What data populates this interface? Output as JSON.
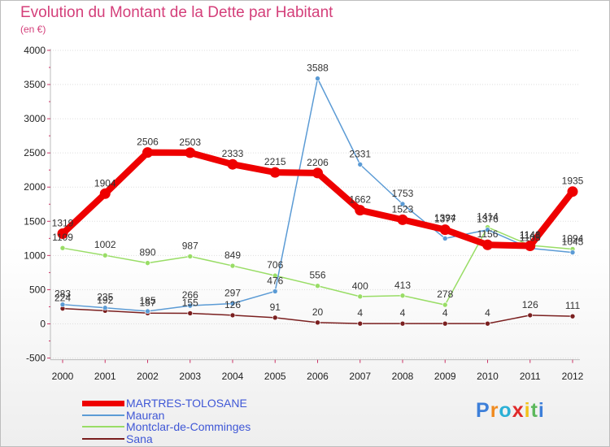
{
  "chart_data": {
    "type": "line",
    "title": "Evolution du Montant de la Dette par Habitant",
    "unit_label": "(en €)",
    "xlabel": "",
    "ylabel": "",
    "categories": [
      "2000",
      "2001",
      "2002",
      "2003",
      "2004",
      "2005",
      "2006",
      "2007",
      "2008",
      "2009",
      "2010",
      "2011",
      "2012"
    ],
    "ylim": [
      -500,
      4000
    ],
    "yticks": [
      -500,
      0,
      500,
      1000,
      1500,
      2000,
      2500,
      3000,
      3500,
      4000
    ],
    "series": [
      {
        "name": "MARTRES-TOLOSANE",
        "color": "#ee0000",
        "values": [
          1319,
          1904,
          2506,
          2503,
          2333,
          2215,
          2206,
          1662,
          1523,
          1377,
          1156,
          1141,
          1935
        ],
        "labels": [
          "1319",
          "1904",
          "2506",
          "2503",
          "2333",
          "2215",
          "2206",
          "1662",
          "1523",
          "1377",
          "1156",
          "1141",
          "1935"
        ]
      },
      {
        "name": "Mauran",
        "color": "#5b9bd5",
        "values": [
          283,
          235,
          185,
          266,
          297,
          476,
          3588,
          2331,
          1753,
          1249,
          1376,
          1105,
          1045
        ],
        "labels": [
          "283",
          "235",
          "185",
          "266",
          "297",
          "476",
          "3588",
          "2331",
          "1753",
          "",
          "1376",
          "1105",
          "1045"
        ]
      },
      {
        "name": "Montclar-de-Comminges",
        "color": "#99dd66",
        "values": [
          1109,
          1002,
          890,
          987,
          849,
          706,
          556,
          400,
          413,
          278,
          1414,
          1148,
          1094
        ],
        "labels": [
          "1109",
          "1002",
          "890",
          "987",
          "849",
          "706",
          "556",
          "400",
          "413",
          "278",
          "1414",
          "1148",
          "1094"
        ]
      },
      {
        "name": "Sana",
        "color": "#7a1f1f",
        "values": [
          224,
          192,
          157,
          155,
          126,
          91,
          20,
          4,
          4,
          4,
          4,
          126,
          111
        ],
        "labels": [
          "224",
          "192",
          "157",
          "155",
          "126",
          "91",
          "20",
          "4",
          "4",
          "4",
          "4",
          "126",
          "111"
        ]
      }
    ],
    "extra_labels": [
      {
        "category": "2009",
        "value": 1394,
        "text": "1394"
      }
    ]
  },
  "legend": {
    "items": [
      "MARTRES-TOLOSANE",
      "Mauran",
      "Montclar-de-Comminges",
      "Sana"
    ]
  },
  "logo": {
    "letters": [
      "P",
      "r",
      "o",
      "x",
      "i",
      "t",
      "i"
    ],
    "colors": [
      "#3d7fd9",
      "#f08a1e",
      "#2bb0d6",
      "#e02a2a",
      "#f2c21a",
      "#5cb85c",
      "#3d7fd9"
    ]
  }
}
